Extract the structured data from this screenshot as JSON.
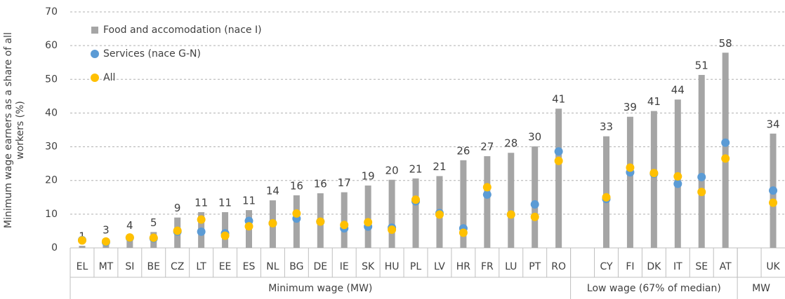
{
  "chart_data": {
    "type": "bar",
    "y_label": "Minimum wage earners as a share of all workers (%)",
    "categories": [
      "EL",
      "MT",
      "SI",
      "BE",
      "CZ",
      "LT",
      "EE",
      "ES",
      "NL",
      "BG",
      "DE",
      "IE",
      "SK",
      "HU",
      "PL",
      "LV",
      "HR",
      "FR",
      "LU",
      "PT",
      "RO",
      null,
      "CY",
      "FI",
      "DK",
      "IT",
      "SE",
      "AT",
      null,
      "UK"
    ],
    "groups": [
      {
        "label": "Minimum wage (MW)",
        "first": "EL",
        "last": "RO"
      },
      {
        "label": "Low wage (67% of median)",
        "first": "CY",
        "last": "AT"
      },
      {
        "label": "MW",
        "first": "UK",
        "last": "UK"
      }
    ],
    "series": [
      {
        "name": "Food and accomodation (nace I)",
        "type": "bar",
        "color": "#a5a5a5",
        "values": [
          0.6,
          2.5,
          3.8,
          4.7,
          9.0,
          10.6,
          10.6,
          11.2,
          14.1,
          15.6,
          16.2,
          16.5,
          18.5,
          20.2,
          20.6,
          21.3,
          26.0,
          27.2,
          28.2,
          30.1,
          41.3,
          null,
          33.1,
          38.9,
          40.6,
          44.0,
          51.3,
          57.9,
          null,
          33.9
        ],
        "value_labels": [
          "1",
          "3",
          "4",
          "5",
          "9",
          "11",
          "11",
          "11",
          "14",
          "16",
          "16",
          "17",
          "19",
          "20",
          "21",
          "21",
          "26",
          "27",
          "28",
          "30",
          "41",
          null,
          "33",
          "39",
          "41",
          "44",
          "51",
          "58",
          null,
          "34"
        ]
      },
      {
        "name": "Services (nace G-N)",
        "type": "scatter",
        "color": "#5b9bd5",
        "values": [
          2.3,
          1.7,
          3.0,
          2.8,
          4.8,
          4.8,
          4.3,
          8.0,
          7.3,
          8.7,
          7.8,
          5.8,
          6.3,
          6.0,
          13.8,
          10.3,
          5.8,
          15.8,
          9.9,
          12.9,
          28.6,
          null,
          14.5,
          22.4,
          22.0,
          19.0,
          21.0,
          31.2,
          null,
          17.0
        ]
      },
      {
        "name": "All",
        "type": "scatter",
        "color": "#ffc000",
        "values": [
          2.2,
          1.9,
          3.1,
          3.0,
          5.1,
          8.4,
          3.6,
          6.4,
          7.3,
          10.2,
          7.8,
          6.8,
          7.6,
          5.4,
          14.3,
          9.9,
          4.5,
          18.0,
          9.9,
          9.2,
          25.8,
          null,
          15.0,
          23.8,
          22.2,
          21.2,
          16.6,
          26.5,
          null,
          13.4
        ]
      }
    ],
    "ylim": [
      0,
      70
    ],
    "yticks": [
      0,
      10,
      20,
      30,
      40,
      50,
      60,
      70
    ],
    "grid": true,
    "legend": "top-left"
  }
}
